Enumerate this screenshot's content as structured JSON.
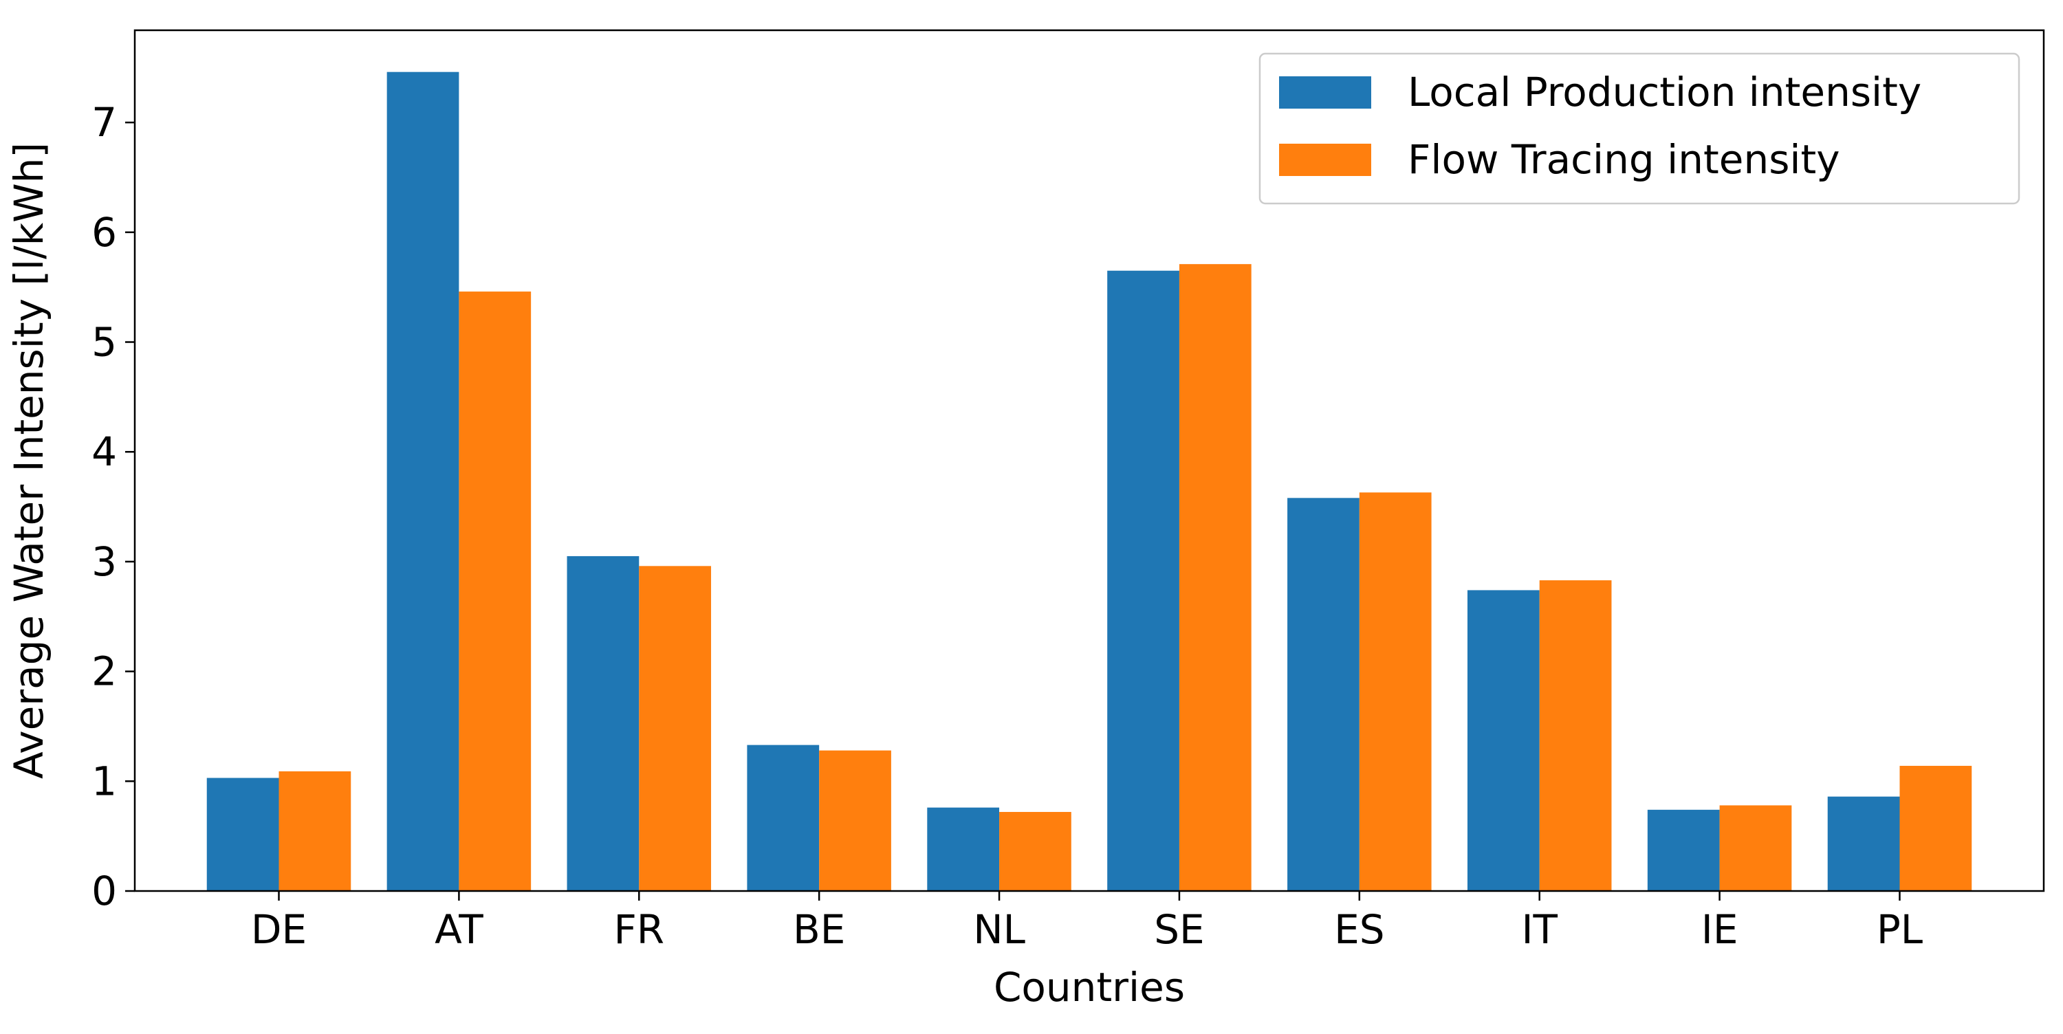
{
  "chart_data": {
    "type": "bar",
    "title": "",
    "xlabel": "Countries",
    "ylabel": "Average Water Intensity [l/kWh]",
    "categories": [
      "DE",
      "AT",
      "FR",
      "BE",
      "NL",
      "SE",
      "ES",
      "IT",
      "IE",
      "PL"
    ],
    "series": [
      {
        "name": "Local Production intensity",
        "color": "#1f77b4",
        "values": [
          1.03,
          7.46,
          3.05,
          1.33,
          0.76,
          5.65,
          3.58,
          2.74,
          0.74,
          0.86
        ]
      },
      {
        "name": "Flow Tracing intensity",
        "color": "#ff7f0e",
        "values": [
          1.09,
          5.46,
          2.96,
          1.28,
          0.72,
          5.71,
          3.63,
          2.83,
          0.78,
          1.14
        ]
      }
    ],
    "ylim": [
      0,
      7.84
    ],
    "yticks": [
      0,
      1,
      2,
      3,
      4,
      5,
      6,
      7
    ],
    "grid": false,
    "legend_position": "top-right"
  }
}
